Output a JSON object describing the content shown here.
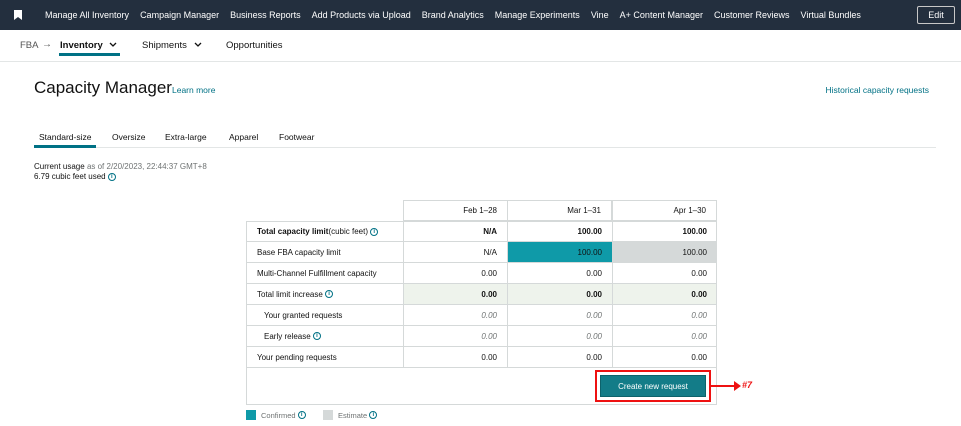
{
  "topnav": {
    "links": [
      "Manage All Inventory",
      "Campaign Manager",
      "Business Reports",
      "Add Products via Upload",
      "Brand Analytics",
      "Manage Experiments",
      "Vine",
      "A+ Content Manager",
      "Customer Reviews",
      "Virtual Bundles"
    ],
    "edit_label": "Edit"
  },
  "subnav": {
    "fba": "FBA",
    "arrow": "→",
    "inventory": "Inventory",
    "shipments": "Shipments",
    "opportunities": "Opportunities"
  },
  "page": {
    "title": "Capacity Manager",
    "learn_more": "Learn more",
    "historical": "Historical capacity requests"
  },
  "tabs": [
    "Standard-size",
    "Oversize",
    "Extra-large",
    "Apparel",
    "Footwear"
  ],
  "usage": {
    "label": "Current usage",
    "as_of": "as of 2/20/2023, 22:44:37 GMT+8",
    "value": "6.79 cubic feet used"
  },
  "table": {
    "columns": [
      "Feb 1–28",
      "Mar 1–31",
      "Apr 1–30"
    ],
    "rows": [
      {
        "label": "Total capacity limit",
        "label_suffix": " (cubic feet)",
        "values": [
          "N/A",
          "100.00",
          "100.00"
        ]
      },
      {
        "label": "Base FBA capacity limit",
        "values": [
          "N/A",
          "100.00",
          "100.00"
        ]
      },
      {
        "label": "Multi-Channel Fulfillment capacity",
        "values": [
          "0.00",
          "0.00",
          "0.00"
        ]
      },
      {
        "label": "Total limit increase",
        "values": [
          "0.00",
          "0.00",
          "0.00"
        ]
      },
      {
        "label": "Your granted requests",
        "values": [
          "0.00",
          "0.00",
          "0.00"
        ]
      },
      {
        "label": "Early release",
        "values": [
          "0.00",
          "0.00",
          "0.00"
        ]
      },
      {
        "label": "Your pending requests",
        "values": [
          "0.00",
          "0.00",
          "0.00"
        ]
      }
    ]
  },
  "create_button": "Create new request",
  "annotation": "#7",
  "legend": {
    "confirmed": "Confirmed",
    "estimate": "Estimate"
  },
  "colors": {
    "nav_bg": "#232f3e",
    "accent": "#007185",
    "confirmed": "#0f9aa8",
    "estimate": "#d5d9d9",
    "highlight_red": "#e11"
  }
}
